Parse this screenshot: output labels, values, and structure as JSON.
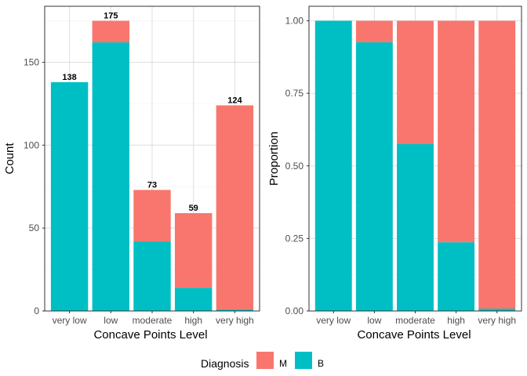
{
  "chart_data": [
    {
      "type": "bar",
      "stacked": true,
      "categories": [
        "very low",
        "low",
        "moderate",
        "high",
        "very high"
      ],
      "series": [
        {
          "name": "M",
          "color": "#F8766D",
          "values": [
            0,
            13,
            31,
            45,
            123
          ]
        },
        {
          "name": "B",
          "color": "#00BFC4",
          "values": [
            138,
            162,
            42,
            14,
            1
          ]
        }
      ],
      "totals": [
        138,
        175,
        73,
        59,
        124
      ],
      "xlabel": "Concave Points Level",
      "ylabel": "Count",
      "ylim": [
        0,
        183.75
      ],
      "yticks": [
        0,
        50,
        100,
        150
      ],
      "ytick_labels": [
        "0",
        "50",
        "100",
        "150"
      ],
      "grid": true
    },
    {
      "type": "bar",
      "stacked": true,
      "normalized": true,
      "categories": [
        "very low",
        "low",
        "moderate",
        "high",
        "very high"
      ],
      "series": [
        {
          "name": "M",
          "color": "#F8766D",
          "values": [
            0.0,
            0.074,
            0.425,
            0.763,
            0.992
          ]
        },
        {
          "name": "B",
          "color": "#00BFC4",
          "values": [
            1.0,
            0.926,
            0.575,
            0.237,
            0.008
          ]
        }
      ],
      "xlabel": "Concave Points Level",
      "ylabel": "Proportion",
      "ylim": [
        0,
        1.05
      ],
      "yticks": [
        0,
        0.25,
        0.5,
        0.75,
        1.0
      ],
      "ytick_labels": [
        "0.00",
        "0.25",
        "0.50",
        "0.75",
        "1.00"
      ],
      "grid": true
    }
  ],
  "legend": {
    "title": "Diagnosis",
    "placement": "bottom",
    "items": [
      {
        "label": "M",
        "color": "#F8766D"
      },
      {
        "label": "B",
        "color": "#00BFC4"
      }
    ]
  }
}
